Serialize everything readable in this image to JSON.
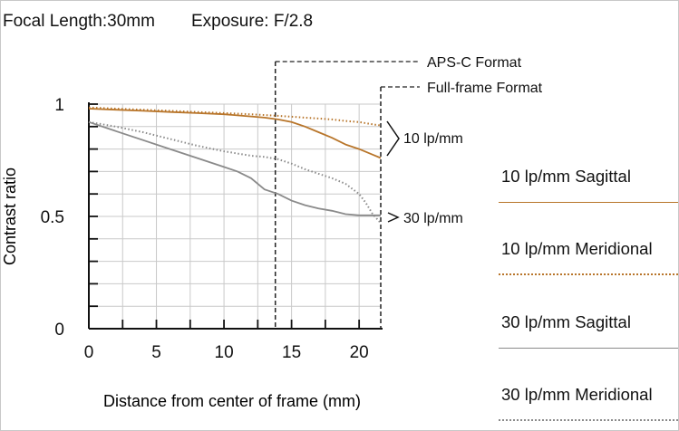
{
  "header": {
    "focal_length": "Focal Length:30mm",
    "exposure": "Exposure: F/2.8"
  },
  "colors": {
    "orange": "#b8752a",
    "gray": "#8a8a8a",
    "grid": "#c9c9c9",
    "axis": "#111111"
  },
  "chart_data": {
    "type": "line",
    "xlabel": "Distance from center of frame (mm)",
    "ylabel": "Contrast ratio",
    "xlim": [
      0,
      21.6
    ],
    "ylim": [
      0,
      1
    ],
    "x_ticks": [
      0,
      5,
      10,
      15,
      20
    ],
    "y_ticks": [
      0,
      0.5,
      1
    ],
    "grid": true,
    "format_markers": [
      {
        "label": "APS-C Format",
        "x": 13.8
      },
      {
        "label": "Full-frame Format",
        "x": 21.6
      }
    ],
    "group_labels": [
      {
        "label": "10 lp/mm",
        "bracket": true
      },
      {
        "label": "30 lp/mm",
        "bracket": false
      }
    ],
    "series": [
      {
        "name": "10 lp/mm Sagittal",
        "color": "#b8752a",
        "dash": "solid",
        "x": [
          0,
          2,
          4,
          6,
          8,
          10,
          12,
          13,
          14,
          15,
          16,
          17,
          18,
          19,
          20,
          21,
          21.6
        ],
        "y": [
          0.98,
          0.975,
          0.97,
          0.965,
          0.96,
          0.955,
          0.945,
          0.94,
          0.932,
          0.92,
          0.9,
          0.875,
          0.85,
          0.82,
          0.8,
          0.775,
          0.76
        ]
      },
      {
        "name": "10 lp/mm Meridional",
        "color": "#b8752a",
        "dash": "dotted",
        "x": [
          0,
          2,
          4,
          6,
          8,
          10,
          12,
          14,
          16,
          18,
          19,
          20,
          21,
          21.6
        ],
        "y": [
          0.985,
          0.98,
          0.975,
          0.97,
          0.965,
          0.96,
          0.955,
          0.948,
          0.94,
          0.932,
          0.925,
          0.92,
          0.91,
          0.905
        ]
      },
      {
        "name": "30 lp/mm Sagittal",
        "color": "#8a8a8a",
        "dash": "solid",
        "x": [
          0,
          2,
          4,
          6,
          8,
          10,
          11,
          12,
          13,
          14,
          15,
          16,
          17,
          18,
          19,
          20,
          21,
          21.6
        ],
        "y": [
          0.92,
          0.88,
          0.84,
          0.8,
          0.76,
          0.72,
          0.7,
          0.67,
          0.62,
          0.6,
          0.57,
          0.55,
          0.535,
          0.525,
          0.51,
          0.505,
          0.505,
          0.505
        ]
      },
      {
        "name": "30 lp/mm Meridional",
        "color": "#8a8a8a",
        "dash": "dotted",
        "x": [
          0,
          2,
          4,
          6,
          8,
          10,
          12,
          13,
          14,
          15,
          16,
          17,
          18,
          19,
          20,
          20.5,
          21,
          21.6
        ],
        "y": [
          0.92,
          0.9,
          0.875,
          0.845,
          0.815,
          0.79,
          0.77,
          0.765,
          0.755,
          0.735,
          0.71,
          0.69,
          0.67,
          0.645,
          0.6,
          0.56,
          0.51,
          0.47
        ]
      }
    ]
  }
}
